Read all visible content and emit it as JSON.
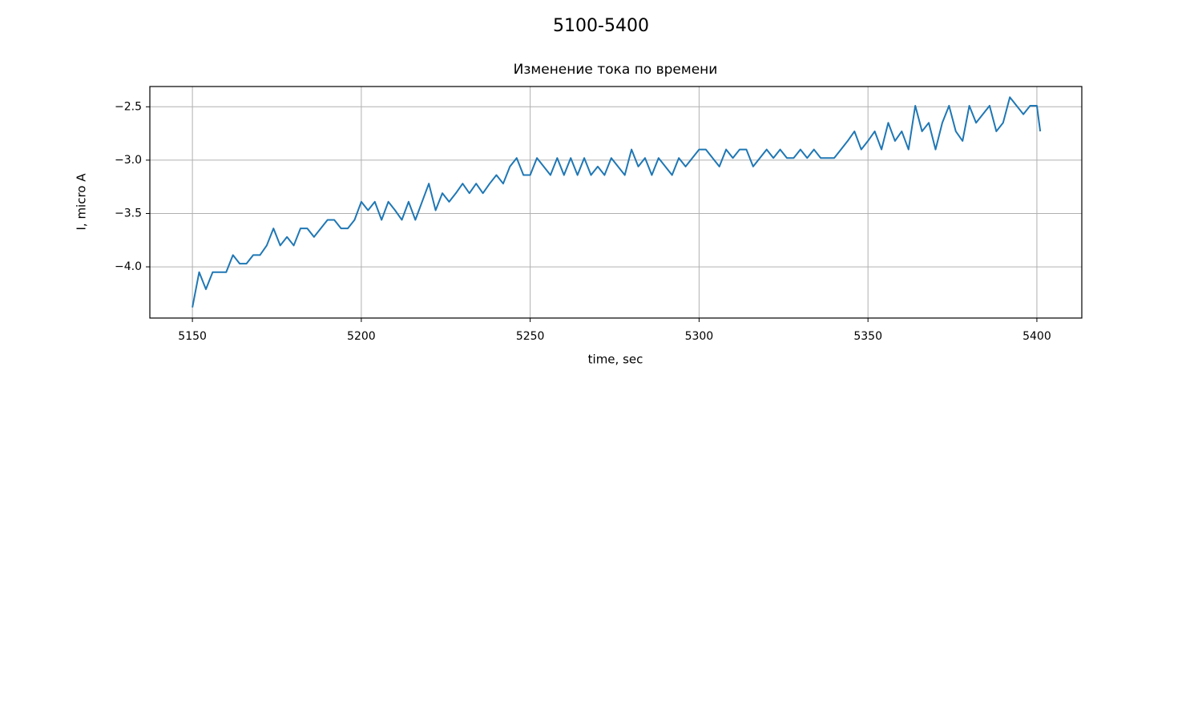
{
  "chart_data": {
    "type": "line",
    "suptitle": "5100-5400",
    "title": "Изменение тока по времени",
    "xlabel": "time, sec",
    "ylabel": "I, micro A",
    "grid": true,
    "xlim": [
      5137.4,
      5413.3
    ],
    "ylim": [
      -4.48,
      -2.31
    ],
    "xticks": [
      5150,
      5200,
      5250,
      5300,
      5350,
      5400
    ],
    "yticks": [
      {
        "value": -2.5,
        "label": "−2.5"
      },
      {
        "value": -3.0,
        "label": "−3.0"
      },
      {
        "value": -3.5,
        "label": "−3.5"
      },
      {
        "value": -4.0,
        "label": "−4.0"
      }
    ],
    "x": [
      5150,
      5152,
      5154,
      5156,
      5158,
      5160,
      5162,
      5164,
      5166,
      5168,
      5170,
      5172,
      5174,
      5176,
      5178,
      5180,
      5182,
      5184,
      5186,
      5188,
      5190,
      5192,
      5194,
      5196,
      5198,
      5200,
      5202,
      5204,
      5206,
      5208,
      5210,
      5212,
      5214,
      5216,
      5218,
      5220,
      5222,
      5224,
      5226,
      5228,
      5230,
      5232,
      5234,
      5236,
      5238,
      5240,
      5242,
      5244,
      5246,
      5248,
      5250,
      5252,
      5254,
      5256,
      5258,
      5260,
      5262,
      5264,
      5266,
      5268,
      5270,
      5272,
      5274,
      5276,
      5278,
      5280,
      5282,
      5284,
      5286,
      5288,
      5290,
      5292,
      5294,
      5296,
      5298,
      5300,
      5302,
      5304,
      5306,
      5308,
      5310,
      5312,
      5314,
      5316,
      5318,
      5320,
      5322,
      5324,
      5326,
      5328,
      5330,
      5332,
      5334,
      5336,
      5338,
      5340,
      5342,
      5344,
      5346,
      5348,
      5350,
      5352,
      5354,
      5356,
      5358,
      5360,
      5362,
      5364,
      5366,
      5368,
      5370,
      5372,
      5374,
      5376,
      5378,
      5380,
      5382,
      5384,
      5386,
      5388,
      5390,
      5392,
      5394,
      5396,
      5398,
      5400,
      5401
    ],
    "series": [
      {
        "color": "#1f77b4",
        "values": [
          -4.38,
          -4.05,
          -4.21,
          -4.05,
          -4.05,
          -4.05,
          -3.89,
          -3.97,
          -3.97,
          -3.89,
          -3.89,
          -3.8,
          -3.64,
          -3.8,
          -3.72,
          -3.8,
          -3.64,
          -3.64,
          -3.72,
          -3.64,
          -3.56,
          -3.56,
          -3.64,
          -3.64,
          -3.56,
          -3.39,
          -3.47,
          -3.39,
          -3.56,
          -3.39,
          -3.47,
          -3.56,
          -3.39,
          -3.56,
          -3.39,
          -3.22,
          -3.47,
          -3.31,
          -3.39,
          -3.31,
          -3.22,
          -3.31,
          -3.22,
          -3.31,
          -3.22,
          -3.14,
          -3.22,
          -3.06,
          -2.98,
          -3.14,
          -3.14,
          -2.98,
          -3.06,
          -3.14,
          -2.98,
          -3.14,
          -2.98,
          -3.14,
          -2.98,
          -3.14,
          -3.06,
          -3.14,
          -2.98,
          -3.06,
          -3.14,
          -2.9,
          -3.06,
          -2.98,
          -3.14,
          -2.98,
          -3.06,
          -3.14,
          -2.98,
          -3.06,
          -2.98,
          -2.9,
          -2.9,
          -2.98,
          -3.06,
          -2.9,
          -2.98,
          -2.9,
          -2.9,
          -3.06,
          -2.98,
          -2.9,
          -2.98,
          -2.9,
          -2.98,
          -2.98,
          -2.9,
          -2.98,
          -2.9,
          -2.98,
          -2.98,
          -2.98,
          -2.9,
          -2.82,
          -2.73,
          -2.9,
          -2.82,
          -2.73,
          -2.9,
          -2.65,
          -2.82,
          -2.73,
          -2.9,
          -2.49,
          -2.73,
          -2.65,
          -2.9,
          -2.65,
          -2.49,
          -2.73,
          -2.82,
          -2.49,
          -2.65,
          -2.57,
          -2.49,
          -2.73,
          -2.65,
          -2.41,
          -2.49,
          -2.57,
          -2.49,
          -2.49,
          -2.73
        ]
      }
    ]
  }
}
